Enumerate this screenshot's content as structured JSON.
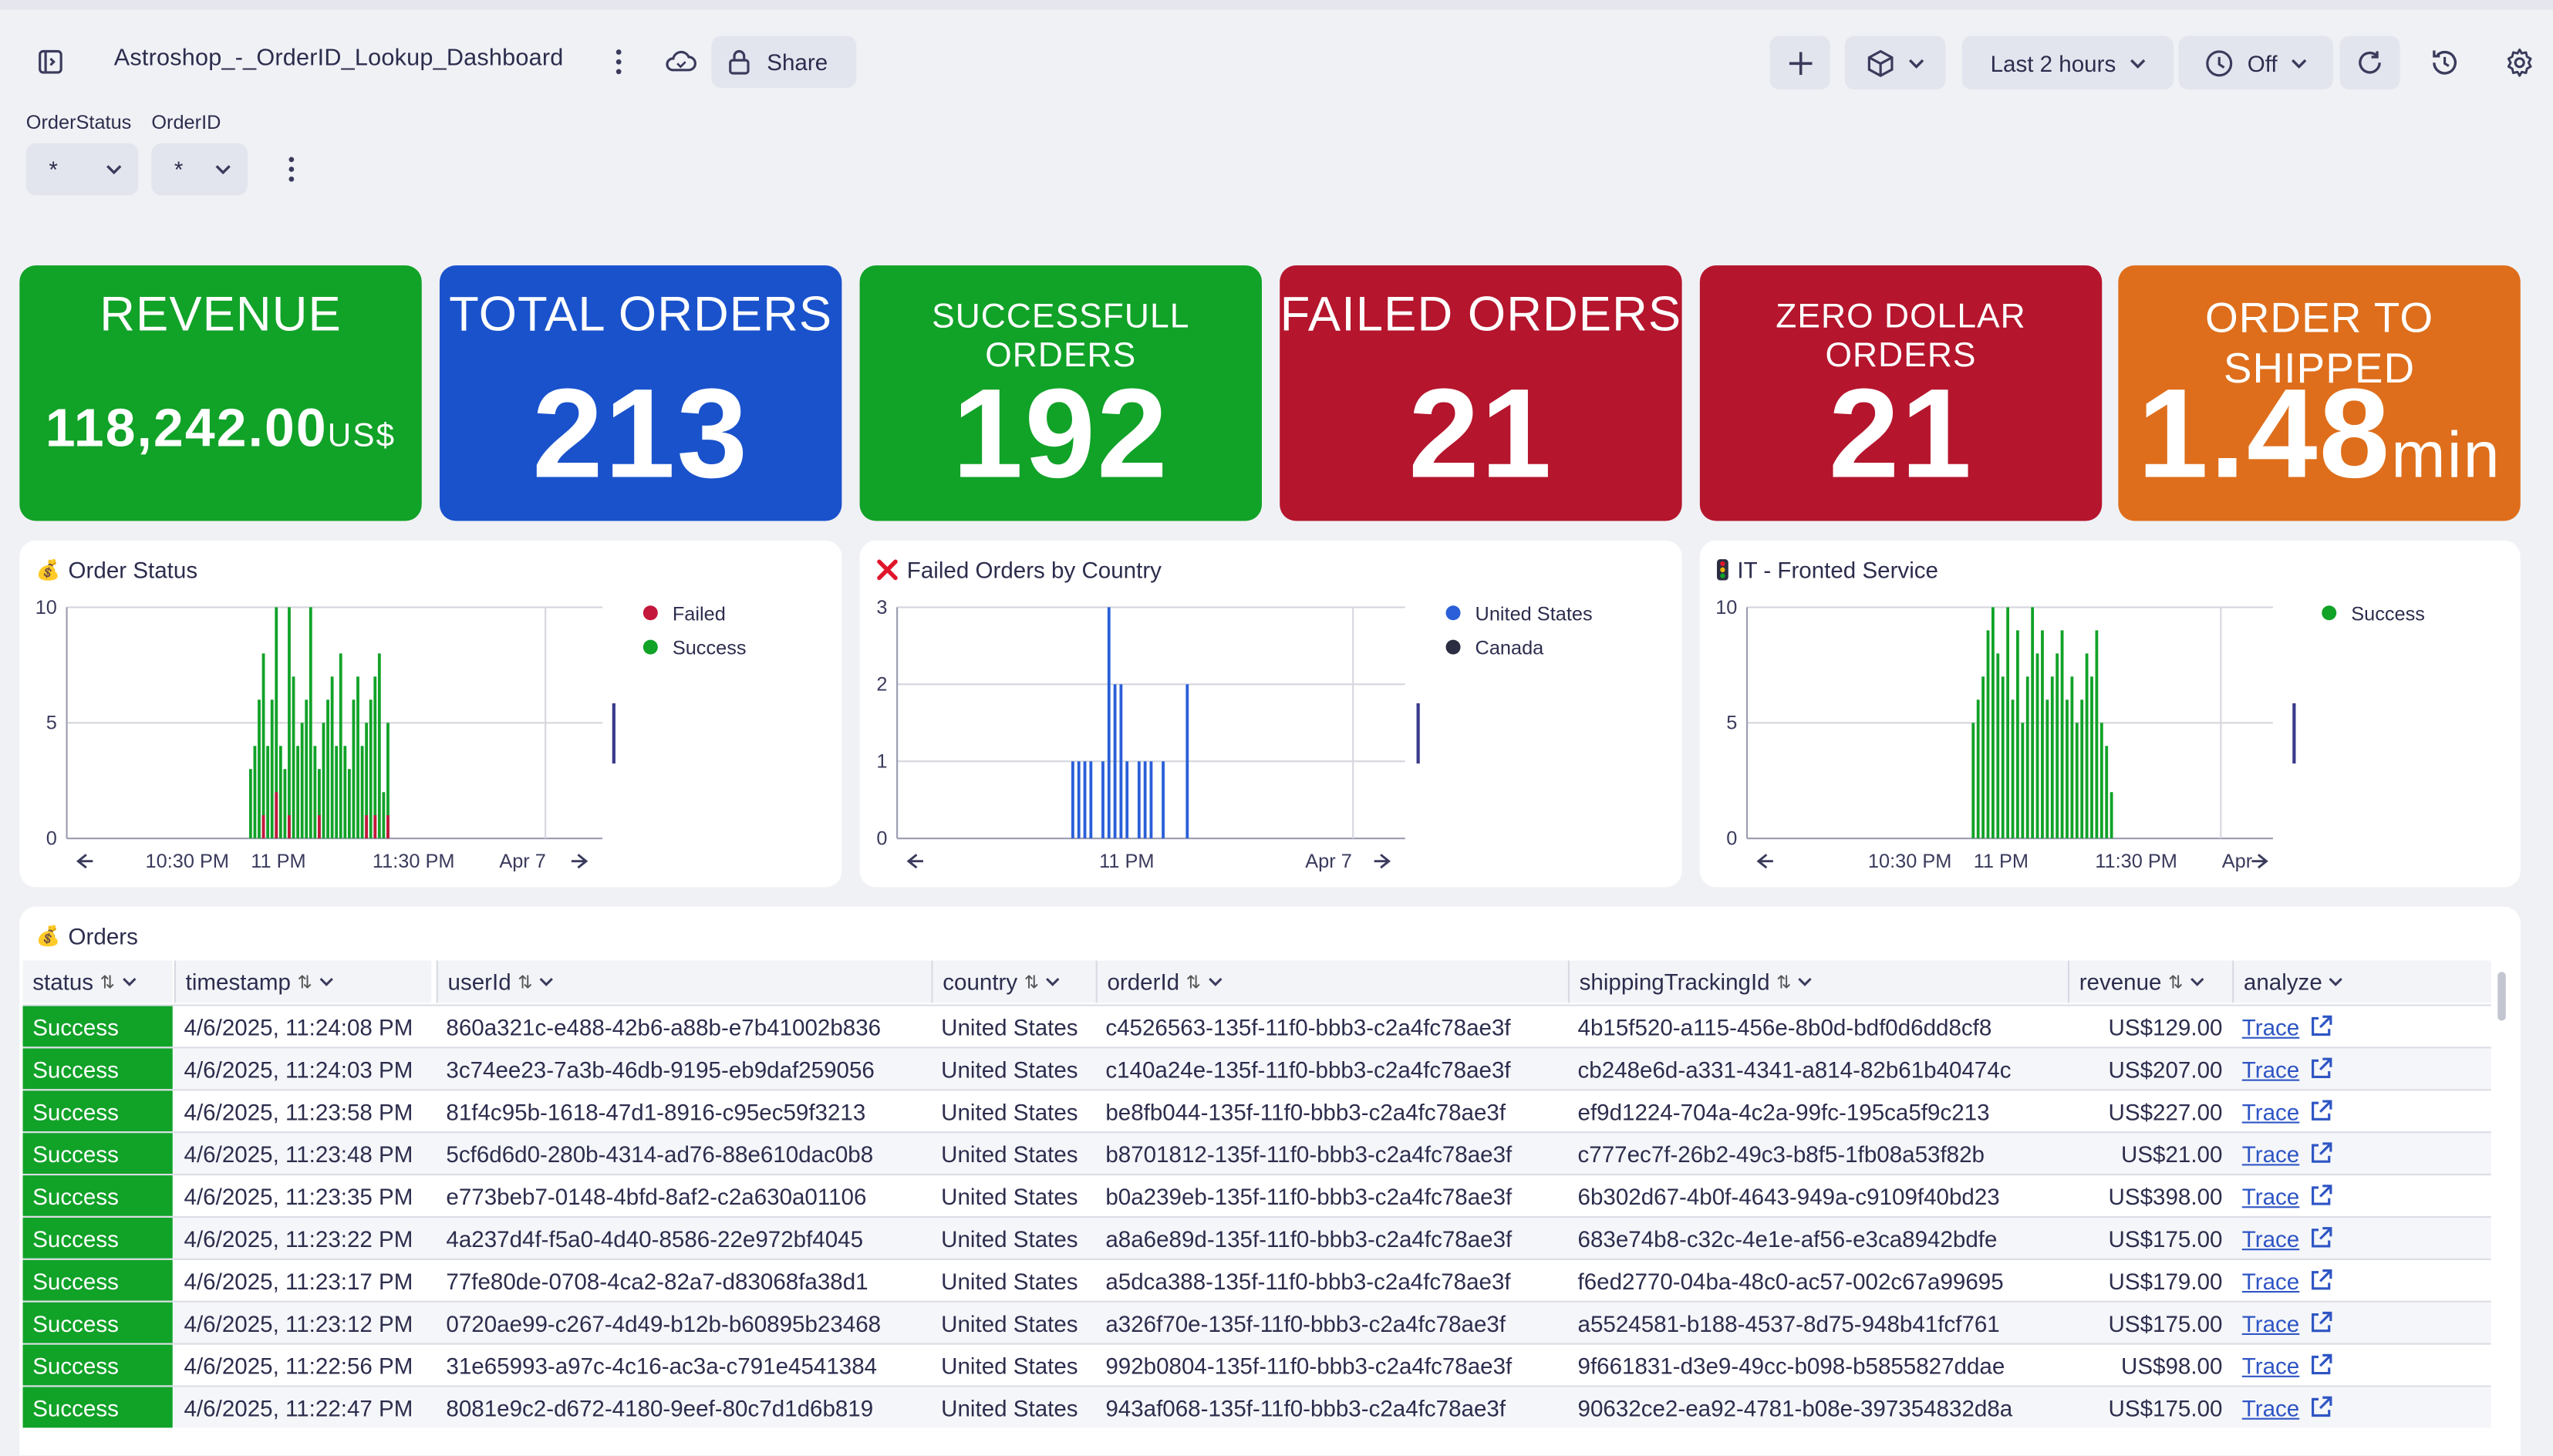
{
  "header": {
    "title": "Astroshop_-_OrderID_Lookup_Dashboard",
    "share_label": "Share",
    "timeframe_label": "Last 2 hours",
    "refresh_label": "Off"
  },
  "filters": [
    {
      "label": "OrderStatus",
      "value": "*"
    },
    {
      "label": "OrderID",
      "value": "*"
    }
  ],
  "kpis": [
    {
      "label": "REVENUE",
      "value": "118,242.00",
      "unit": "US$",
      "color": "#11a228"
    },
    {
      "label": "TOTAL ORDERS",
      "value": "213",
      "color": "#1a52cc"
    },
    {
      "label": "SUCCESSFULL ORDERS",
      "value": "192",
      "color": "#11a228"
    },
    {
      "label": "FAILED ORDERS",
      "value": "21",
      "color": "#b5152d"
    },
    {
      "label": "ZERO DOLLAR ORDERS",
      "value": "21",
      "color": "#b5152d"
    },
    {
      "label": "ORDER TO SHIPPED",
      "value": "1.48",
      "unit": "min",
      "color": "#de6e1b"
    }
  ],
  "charts": {
    "order_status": {
      "title": "Order Status",
      "icon": "money-bag-icon",
      "legend": [
        {
          "name": "Failed",
          "color": "#c4173c"
        },
        {
          "name": "Success",
          "color": "#11a228"
        }
      ],
      "y_ticks": [
        "10",
        "5",
        "0"
      ],
      "x_ticks": [
        "10:30 PM",
        "11 PM",
        "11:30 PM",
        "Apr 7"
      ]
    },
    "failed_by_country": {
      "title": "Failed Orders by Country",
      "icon": "red-x-icon",
      "legend": [
        {
          "name": "United States",
          "color": "#2a5fd9"
        },
        {
          "name": "Canada",
          "color": "#2b2d42"
        }
      ],
      "y_ticks": [
        "3",
        "2",
        "1",
        "0"
      ],
      "x_ticks": [
        "11 PM",
        "Apr 7"
      ]
    },
    "frontend_service": {
      "title": "IT - Fronted Service",
      "icon": "traffic-light-icon",
      "legend": [
        {
          "name": "Success",
          "color": "#11a228"
        }
      ],
      "y_ticks": [
        "10",
        "5",
        "0"
      ],
      "x_ticks": [
        "10:30 PM",
        "11 PM",
        "11:30 PM",
        "Apr"
      ]
    }
  },
  "chart_data": [
    {
      "type": "bar",
      "title": "Order Status",
      "ylim": [
        0,
        10
      ],
      "series": [
        {
          "name": "Success",
          "values": [
            3,
            4,
            6,
            8,
            4,
            6,
            10,
            4,
            3,
            10,
            7,
            4,
            5,
            6,
            10,
            4,
            3,
            5,
            6,
            7,
            4,
            8,
            4,
            3,
            6,
            7,
            4,
            5,
            6,
            7,
            8,
            2,
            5
          ]
        },
        {
          "name": "Failed",
          "values": [
            0,
            0,
            0,
            1,
            0,
            0,
            2,
            0,
            0,
            1,
            0,
            0,
            0,
            0,
            0,
            0,
            1,
            0,
            0,
            0,
            0,
            0,
            0,
            0,
            0,
            0,
            0,
            1,
            0,
            1,
            0,
            0,
            1
          ]
        }
      ]
    },
    {
      "type": "bar",
      "title": "Failed Orders by Country",
      "ylim": [
        0,
        3
      ],
      "series": [
        {
          "name": "United States",
          "values": [
            1,
            1,
            1,
            1,
            0,
            1,
            3,
            2,
            2,
            1,
            0,
            1,
            1,
            1,
            0,
            1,
            0,
            0,
            0,
            2
          ]
        }
      ]
    },
    {
      "type": "bar",
      "title": "IT - Fronted Service",
      "ylim": [
        0,
        10
      ],
      "series": [
        {
          "name": "Success",
          "values": [
            5,
            6,
            7,
            9,
            10,
            8,
            7,
            10,
            6,
            9,
            5,
            7,
            10,
            8,
            9,
            6,
            7,
            8,
            9,
            6,
            7,
            5,
            6,
            8,
            7,
            9,
            5,
            4,
            2
          ]
        }
      ]
    }
  ],
  "table": {
    "title": "Orders",
    "columns": [
      "status",
      "timestamp",
      "userId",
      "country",
      "orderId",
      "shippingTrackingId",
      "revenue",
      "analyze"
    ],
    "rows": [
      [
        "Success",
        "4/6/2025, 11:24:08 PM",
        "860a321c-e488-42b6-a88b-e7b41002b836",
        "United States",
        "c4526563-135f-11f0-bbb3-c2a4fc78ae3f",
        "4b15f520-a115-456e-8b0d-bdf0d6dd8cf8",
        "US$129.00",
        "Trace"
      ],
      [
        "Success",
        "4/6/2025, 11:24:03 PM",
        "3c74ee23-7a3b-46db-9195-eb9daf259056",
        "United States",
        "c140a24e-135f-11f0-bbb3-c2a4fc78ae3f",
        "cb248e6d-a331-4341-a814-82b61b40474c",
        "US$207.00",
        "Trace"
      ],
      [
        "Success",
        "4/6/2025, 11:23:58 PM",
        "81f4c95b-1618-47d1-8916-c95ec59f3213",
        "United States",
        "be8fb044-135f-11f0-bbb3-c2a4fc78ae3f",
        "ef9d1224-704a-4c2a-99fc-195ca5f9c213",
        "US$227.00",
        "Trace"
      ],
      [
        "Success",
        "4/6/2025, 11:23:48 PM",
        "5cf6d6d0-280b-4314-ad76-88e610dac0b8",
        "United States",
        "b8701812-135f-11f0-bbb3-c2a4fc78ae3f",
        "c777ec7f-26b2-49c3-b8f5-1fb08a53f82b",
        "US$21.00",
        "Trace"
      ],
      [
        "Success",
        "4/6/2025, 11:23:35 PM",
        "e773beb7-0148-4bfd-8af2-c2a630a01106",
        "United States",
        "b0a239eb-135f-11f0-bbb3-c2a4fc78ae3f",
        "6b302d67-4b0f-4643-949a-c9109f40bd23",
        "US$398.00",
        "Trace"
      ],
      [
        "Success",
        "4/6/2025, 11:23:22 PM",
        "4a237d4f-f5a0-4d40-8586-22e972bf4045",
        "United States",
        "a8a6e89d-135f-11f0-bbb3-c2a4fc78ae3f",
        "683e74b8-c32c-4e1e-af56-e3ca8942bdfe",
        "US$175.00",
        "Trace"
      ],
      [
        "Success",
        "4/6/2025, 11:23:17 PM",
        "77fe80de-0708-4ca2-82a7-d83068fa38d1",
        "United States",
        "a5dca388-135f-11f0-bbb3-c2a4fc78ae3f",
        "f6ed2770-04ba-48c0-ac57-002c67a99695",
        "US$179.00",
        "Trace"
      ],
      [
        "Success",
        "4/6/2025, 11:23:12 PM",
        "0720ae99-c267-4d49-b12b-b60895b23468",
        "United States",
        "a326f70e-135f-11f0-bbb3-c2a4fc78ae3f",
        "a5524581-b188-4537-8d75-948b41fcf761",
        "US$175.00",
        "Trace"
      ],
      [
        "Success",
        "4/6/2025, 11:22:56 PM",
        "31e65993-a97c-4c16-ac3a-c791e4541384",
        "United States",
        "992b0804-135f-11f0-bbb3-c2a4fc78ae3f",
        "9f661831-d3e9-49cc-b098-b5855827ddae",
        "US$98.00",
        "Trace"
      ],
      [
        "Success",
        "4/6/2025, 11:22:47 PM",
        "8081e9c2-d672-4180-9eef-80c7d1d6b819",
        "United States",
        "943af068-135f-11f0-bbb3-c2a4fc78ae3f",
        "90632ce2-ea92-4781-b08e-397354832d8a",
        "US$175.00",
        "Trace"
      ]
    ]
  }
}
